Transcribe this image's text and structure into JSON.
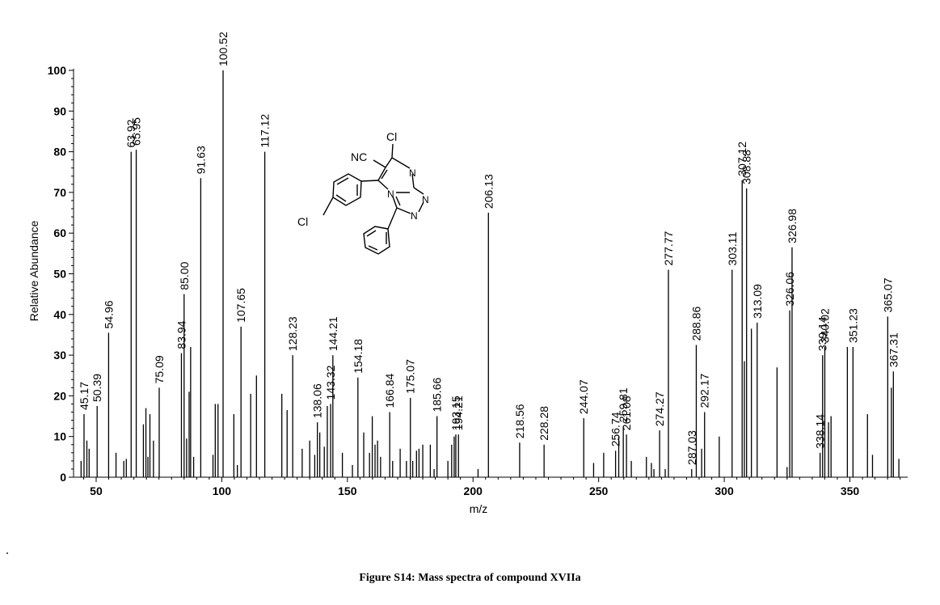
{
  "caption": "Figure S14: Mass spectra of compound XVIIa",
  "chart_data": {
    "type": "bar",
    "xlabel": "m/z",
    "ylabel": "Relative Abundance",
    "xlim": [
      41,
      373
    ],
    "ylim": [
      0,
      100
    ],
    "x_ticks": [
      50,
      100,
      150,
      200,
      250,
      300,
      350
    ],
    "y_ticks": [
      0,
      10,
      20,
      30,
      40,
      50,
      60,
      70,
      80,
      90,
      100
    ],
    "labeled_peaks": [
      {
        "mz": 45.17,
        "intensity": 15.5,
        "label": "45.17"
      },
      {
        "mz": 50.39,
        "intensity": 17.5,
        "label": "50.39"
      },
      {
        "mz": 54.96,
        "intensity": 35.5,
        "label": "54.96"
      },
      {
        "mz": 63.92,
        "intensity": 80,
        "label": "63.92"
      },
      {
        "mz": 65.95,
        "intensity": 80.5,
        "label": "65.95"
      },
      {
        "mz": 75.09,
        "intensity": 22,
        "label": "75.09"
      },
      {
        "mz": 83.94,
        "intensity": 30.5,
        "label": "83.94"
      },
      {
        "mz": 85.0,
        "intensity": 45,
        "label": "85.00"
      },
      {
        "mz": 91.63,
        "intensity": 73.5,
        "label": "91.63"
      },
      {
        "mz": 100.52,
        "intensity": 100,
        "label": "100.52"
      },
      {
        "mz": 107.65,
        "intensity": 37,
        "label": "107.65"
      },
      {
        "mz": 117.12,
        "intensity": 80,
        "label": "117.12"
      },
      {
        "mz": 128.23,
        "intensity": 30,
        "label": "128.23"
      },
      {
        "mz": 138.06,
        "intensity": 13.5,
        "label": "138.06"
      },
      {
        "mz": 143.32,
        "intensity": 18,
        "label": "143.32"
      },
      {
        "mz": 144.21,
        "intensity": 30,
        "label": "144.21"
      },
      {
        "mz": 154.18,
        "intensity": 24.5,
        "label": "154.18"
      },
      {
        "mz": 166.84,
        "intensity": 16,
        "label": "166.84"
      },
      {
        "mz": 175.07,
        "intensity": 19.5,
        "label": "175.07"
      },
      {
        "mz": 185.66,
        "intensity": 15,
        "label": "185.66"
      },
      {
        "mz": 193.15,
        "intensity": 10.5,
        "label": "193.15"
      },
      {
        "mz": 194.21,
        "intensity": 10.5,
        "label": "194.21"
      },
      {
        "mz": 206.13,
        "intensity": 65,
        "label": "206.13"
      },
      {
        "mz": 218.56,
        "intensity": 8.5,
        "label": "218.56"
      },
      {
        "mz": 228.28,
        "intensity": 8,
        "label": "228.28"
      },
      {
        "mz": 244.07,
        "intensity": 14.5,
        "label": "244.07"
      },
      {
        "mz": 256.74,
        "intensity": 6.5,
        "label": "256.74"
      },
      {
        "mz": 259.81,
        "intensity": 12.5,
        "label": "259.81"
      },
      {
        "mz": 261.08,
        "intensity": 10.5,
        "label": "261.08"
      },
      {
        "mz": 274.27,
        "intensity": 11.5,
        "label": "274.27"
      },
      {
        "mz": 277.77,
        "intensity": 51,
        "label": "277.77"
      },
      {
        "mz": 287.03,
        "intensity": 2,
        "label": "287.03"
      },
      {
        "mz": 288.86,
        "intensity": 32.5,
        "label": "288.86"
      },
      {
        "mz": 292.17,
        "intensity": 16,
        "label": "292.17"
      },
      {
        "mz": 303.11,
        "intensity": 51,
        "label": "303.11"
      },
      {
        "mz": 307.12,
        "intensity": 73,
        "label": "307.12"
      },
      {
        "mz": 308.88,
        "intensity": 71,
        "label": "308.88"
      },
      {
        "mz": 313.09,
        "intensity": 38,
        "label": "313.09"
      },
      {
        "mz": 326.06,
        "intensity": 41,
        "label": "326.06"
      },
      {
        "mz": 326.98,
        "intensity": 56.5,
        "label": "326.98"
      },
      {
        "mz": 338.14,
        "intensity": 6,
        "label": "338.14"
      },
      {
        "mz": 339.14,
        "intensity": 30,
        "label": "339.14"
      },
      {
        "mz": 340.02,
        "intensity": 32,
        "label": "340.02"
      },
      {
        "mz": 351.23,
        "intensity": 32,
        "label": "351.23"
      },
      {
        "mz": 365.07,
        "intensity": 39.5,
        "label": "365.07"
      },
      {
        "mz": 367.31,
        "intensity": 26,
        "label": "367.31"
      }
    ],
    "unlabeled_peaks": [
      {
        "mz": 44.0,
        "intensity": 4
      },
      {
        "mz": 46.3,
        "intensity": 9
      },
      {
        "mz": 47.2,
        "intensity": 7
      },
      {
        "mz": 57.9,
        "intensity": 6
      },
      {
        "mz": 61.0,
        "intensity": 4
      },
      {
        "mz": 62.0,
        "intensity": 4.5
      },
      {
        "mz": 68.8,
        "intensity": 13
      },
      {
        "mz": 69.8,
        "intensity": 17
      },
      {
        "mz": 70.6,
        "intensity": 5
      },
      {
        "mz": 71.4,
        "intensity": 15.5
      },
      {
        "mz": 72.8,
        "intensity": 9
      },
      {
        "mz": 86.0,
        "intensity": 9.5
      },
      {
        "mz": 87.0,
        "intensity": 21
      },
      {
        "mz": 87.6,
        "intensity": 32
      },
      {
        "mz": 88.8,
        "intensity": 5
      },
      {
        "mz": 96.5,
        "intensity": 5.5
      },
      {
        "mz": 97.4,
        "intensity": 18
      },
      {
        "mz": 98.5,
        "intensity": 18
      },
      {
        "mz": 104.8,
        "intensity": 15.5
      },
      {
        "mz": 106.2,
        "intensity": 3
      },
      {
        "mz": 111.5,
        "intensity": 20.5
      },
      {
        "mz": 113.8,
        "intensity": 25
      },
      {
        "mz": 123.9,
        "intensity": 20.5
      },
      {
        "mz": 126.0,
        "intensity": 16.5
      },
      {
        "mz": 132.0,
        "intensity": 7
      },
      {
        "mz": 135.0,
        "intensity": 9
      },
      {
        "mz": 137.0,
        "intensity": 5.5
      },
      {
        "mz": 139.0,
        "intensity": 11
      },
      {
        "mz": 140.8,
        "intensity": 7.5
      },
      {
        "mz": 142.0,
        "intensity": 17.5
      },
      {
        "mz": 148.0,
        "intensity": 6
      },
      {
        "mz": 152.0,
        "intensity": 3
      },
      {
        "mz": 156.5,
        "intensity": 11
      },
      {
        "mz": 158.8,
        "intensity": 6
      },
      {
        "mz": 159.9,
        "intensity": 15
      },
      {
        "mz": 161.0,
        "intensity": 8
      },
      {
        "mz": 162.0,
        "intensity": 9
      },
      {
        "mz": 163.2,
        "intensity": 5
      },
      {
        "mz": 168.0,
        "intensity": 4
      },
      {
        "mz": 171.0,
        "intensity": 7
      },
      {
        "mz": 173.5,
        "intensity": 4
      },
      {
        "mz": 176.0,
        "intensity": 4
      },
      {
        "mz": 177.5,
        "intensity": 6.5
      },
      {
        "mz": 178.5,
        "intensity": 7
      },
      {
        "mz": 180.0,
        "intensity": 8
      },
      {
        "mz": 183.0,
        "intensity": 8
      },
      {
        "mz": 184.5,
        "intensity": 2
      },
      {
        "mz": 190.0,
        "intensity": 4
      },
      {
        "mz": 191.5,
        "intensity": 8
      },
      {
        "mz": 192.5,
        "intensity": 10
      },
      {
        "mz": 202.0,
        "intensity": 2
      },
      {
        "mz": 248.0,
        "intensity": 3.5
      },
      {
        "mz": 252.0,
        "intensity": 6
      },
      {
        "mz": 258.0,
        "intensity": 10
      },
      {
        "mz": 263.0,
        "intensity": 4
      },
      {
        "mz": 269.0,
        "intensity": 5
      },
      {
        "mz": 271.0,
        "intensity": 3.5
      },
      {
        "mz": 272.0,
        "intensity": 2
      },
      {
        "mz": 276.5,
        "intensity": 2
      },
      {
        "mz": 291.0,
        "intensity": 7
      },
      {
        "mz": 298.0,
        "intensity": 10
      },
      {
        "mz": 308.0,
        "intensity": 28.5
      },
      {
        "mz": 310.8,
        "intensity": 36.5
      },
      {
        "mz": 321.0,
        "intensity": 27
      },
      {
        "mz": 325.0,
        "intensity": 2.5
      },
      {
        "mz": 341.5,
        "intensity": 13.5
      },
      {
        "mz": 342.5,
        "intensity": 15
      },
      {
        "mz": 349.0,
        "intensity": 32
      },
      {
        "mz": 357.0,
        "intensity": 15.5
      },
      {
        "mz": 359.0,
        "intensity": 5.5
      },
      {
        "mz": 366.5,
        "intensity": 22
      },
      {
        "mz": 369.5,
        "intensity": 4.5
      }
    ]
  },
  "structure": {
    "atom_labels": {
      "cl_top": "Cl",
      "nc": "NC",
      "n_ring": "N",
      "n_bridge": "N",
      "n_triazole_1": "N",
      "n_triazole_2": "N",
      "cl_left": "Cl"
    }
  }
}
